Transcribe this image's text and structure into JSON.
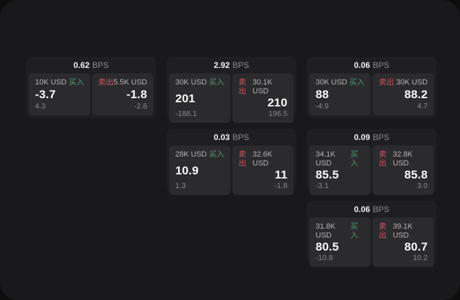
{
  "colors": {
    "page_bg": "#0e0e0e",
    "window_bg": "#19191b",
    "card_bg": "#1f1f21",
    "tile_bg": "#2b2b2d",
    "buy_accent": "#4e9e6e",
    "sell_accent": "#cf5466",
    "text_primary": "#fafafa",
    "text_muted": "#8b8b8b",
    "text_label": "#b5b5b5"
  },
  "cards": [
    {
      "bps_value": "0.62",
      "bps_unit": "BPS",
      "buy": {
        "amount": "10K USD",
        "side_label": "买入",
        "main": "-3.7",
        "sub": "4.3"
      },
      "sell": {
        "side_label": "卖出",
        "amount": "5.5K USD",
        "main": "-1.8",
        "sub": "-2.6"
      }
    },
    {
      "bps_value": "2.92",
      "bps_unit": "BPS",
      "buy": {
        "amount": "30K USD",
        "side_label": "买入",
        "main": "201",
        "sub": "-188.1"
      },
      "sell": {
        "side_label": "卖出",
        "amount": "30.1K USD",
        "main": "210",
        "sub": "196.5"
      }
    },
    {
      "bps_value": "0.06",
      "bps_unit": "BPS",
      "buy": {
        "amount": "30K USD",
        "side_label": "买入",
        "main": "88",
        "sub": "-4.9"
      },
      "sell": {
        "side_label": "卖出",
        "amount": "30K USD",
        "main": "88.2",
        "sub": "4.7"
      }
    },
    {
      "bps_value": "0.03",
      "bps_unit": "BPS",
      "buy": {
        "amount": "28K USD",
        "side_label": "买入",
        "main": "10.9",
        "sub": "1.3"
      },
      "sell": {
        "side_label": "卖出",
        "amount": "32.6K USD",
        "main": "11",
        "sub": "-1.8"
      }
    },
    {
      "bps_value": "0.09",
      "bps_unit": "BPS",
      "buy": {
        "amount": "34.1K USD",
        "side_label": "买入",
        "main": "85.5",
        "sub": "-3.1"
      },
      "sell": {
        "side_label": "卖出",
        "amount": "32.8K USD",
        "main": "85.8",
        "sub": "3.0"
      }
    },
    {
      "bps_value": "0.06",
      "bps_unit": "BPS",
      "buy": {
        "amount": "31.8K USD",
        "side_label": "买入",
        "main": "80.5",
        "sub": "-10.8"
      },
      "sell": {
        "side_label": "卖出",
        "amount": "39.1K USD",
        "main": "80.7",
        "sub": "10.2"
      }
    }
  ]
}
